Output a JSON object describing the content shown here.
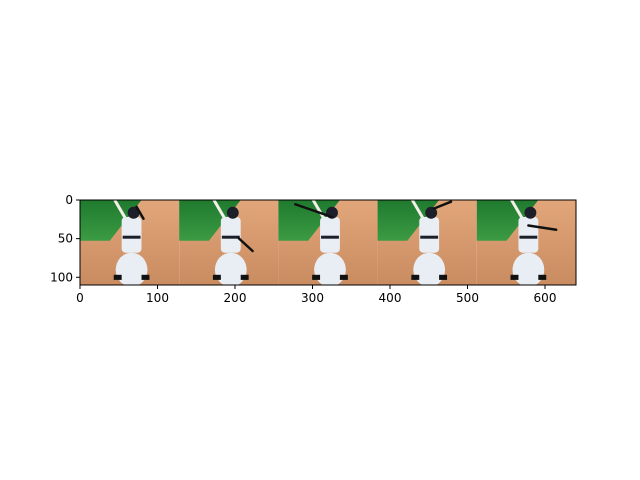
{
  "chart_data": {
    "type": "image",
    "xlim": [
      0,
      640
    ],
    "ylim": [
      110,
      0
    ],
    "xticks": [
      0,
      100,
      200,
      300,
      400,
      500,
      600
    ],
    "yticks": [
      0,
      50,
      100
    ],
    "frames": [
      {
        "x_start": 0,
        "x_end": 128
      },
      {
        "x_start": 128,
        "x_end": 256
      },
      {
        "x_start": 256,
        "x_end": 384
      },
      {
        "x_start": 384,
        "x_end": 512
      },
      {
        "x_start": 512,
        "x_end": 640
      }
    ],
    "title": "",
    "xlabel": "",
    "ylabel": "",
    "grid": false,
    "colors": {
      "grass": "#2f8a3a",
      "dirt": "#d99a6c",
      "uniform": "#e9eef4",
      "cap": "#1c1f2a",
      "skin": "#8a5a3c"
    }
  }
}
